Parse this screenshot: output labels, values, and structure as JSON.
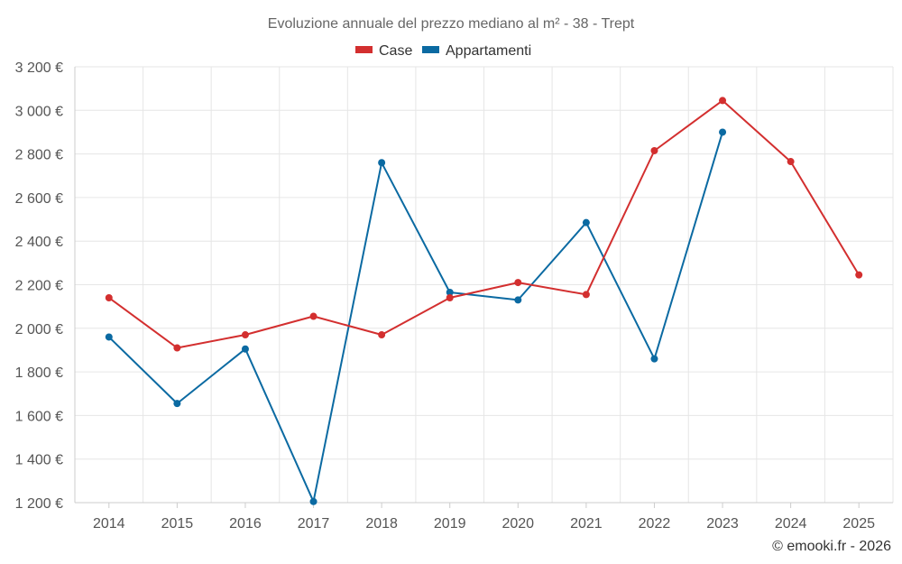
{
  "chart_data": {
    "type": "line",
    "title": "Evoluzione annuale del prezzo mediano al m² - 38 - Trept",
    "categories": [
      "2014",
      "2015",
      "2016",
      "2017",
      "2018",
      "2019",
      "2020",
      "2021",
      "2022",
      "2023",
      "2024",
      "2025"
    ],
    "ylim": [
      1200,
      3200
    ],
    "yticks": [
      1200,
      1400,
      1600,
      1800,
      2000,
      2200,
      2400,
      2600,
      2800,
      3000,
      3200
    ],
    "ytick_labels": [
      "1 200 €",
      "1 400 €",
      "1 600 €",
      "1 800 €",
      "2 000 €",
      "2 200 €",
      "2 400 €",
      "2 600 €",
      "2 800 €",
      "3 000 €",
      "3 200 €"
    ],
    "grid": true,
    "legend_position": "top-center",
    "series": [
      {
        "name": "Case",
        "color": "#d32f2f",
        "values": [
          2140,
          1910,
          1970,
          2055,
          1970,
          2140,
          2210,
          2155,
          2815,
          3045,
          2765,
          2245
        ]
      },
      {
        "name": "Appartamenti",
        "color": "#0b6aa2",
        "values": [
          1960,
          1655,
          1905,
          1205,
          2760,
          2165,
          2130,
          2485,
          1860,
          2900,
          null,
          null
        ]
      }
    ]
  },
  "credit": "© emooki.fr - 2026"
}
